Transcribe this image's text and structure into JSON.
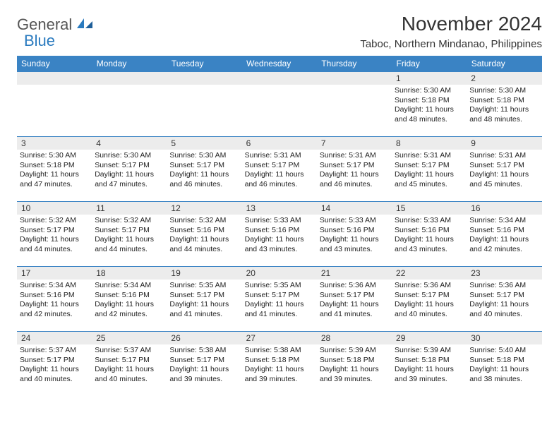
{
  "logo": {
    "text1": "General",
    "text2": "Blue"
  },
  "title": "November 2024",
  "location": "Taboc, Northern Mindanao, Philippines",
  "colors": {
    "header_bg": "#3a83c4",
    "header_fg": "#ffffff",
    "daynum_bg": "#ececec",
    "border": "#3a83c4",
    "logo_gray": "#555555",
    "logo_blue": "#2b7bbf"
  },
  "weekdays": [
    "Sunday",
    "Monday",
    "Tuesday",
    "Wednesday",
    "Thursday",
    "Friday",
    "Saturday"
  ],
  "weeks": [
    [
      {
        "day": "",
        "lines": []
      },
      {
        "day": "",
        "lines": []
      },
      {
        "day": "",
        "lines": []
      },
      {
        "day": "",
        "lines": []
      },
      {
        "day": "",
        "lines": []
      },
      {
        "day": "1",
        "lines": [
          "Sunrise: 5:30 AM",
          "Sunset: 5:18 PM",
          "Daylight: 11 hours and 48 minutes."
        ]
      },
      {
        "day": "2",
        "lines": [
          "Sunrise: 5:30 AM",
          "Sunset: 5:18 PM",
          "Daylight: 11 hours and 48 minutes."
        ]
      }
    ],
    [
      {
        "day": "3",
        "lines": [
          "Sunrise: 5:30 AM",
          "Sunset: 5:18 PM",
          "Daylight: 11 hours and 47 minutes."
        ]
      },
      {
        "day": "4",
        "lines": [
          "Sunrise: 5:30 AM",
          "Sunset: 5:17 PM",
          "Daylight: 11 hours and 47 minutes."
        ]
      },
      {
        "day": "5",
        "lines": [
          "Sunrise: 5:30 AM",
          "Sunset: 5:17 PM",
          "Daylight: 11 hours and 46 minutes."
        ]
      },
      {
        "day": "6",
        "lines": [
          "Sunrise: 5:31 AM",
          "Sunset: 5:17 PM",
          "Daylight: 11 hours and 46 minutes."
        ]
      },
      {
        "day": "7",
        "lines": [
          "Sunrise: 5:31 AM",
          "Sunset: 5:17 PM",
          "Daylight: 11 hours and 46 minutes."
        ]
      },
      {
        "day": "8",
        "lines": [
          "Sunrise: 5:31 AM",
          "Sunset: 5:17 PM",
          "Daylight: 11 hours and 45 minutes."
        ]
      },
      {
        "day": "9",
        "lines": [
          "Sunrise: 5:31 AM",
          "Sunset: 5:17 PM",
          "Daylight: 11 hours and 45 minutes."
        ]
      }
    ],
    [
      {
        "day": "10",
        "lines": [
          "Sunrise: 5:32 AM",
          "Sunset: 5:17 PM",
          "Daylight: 11 hours and 44 minutes."
        ]
      },
      {
        "day": "11",
        "lines": [
          "Sunrise: 5:32 AM",
          "Sunset: 5:17 PM",
          "Daylight: 11 hours and 44 minutes."
        ]
      },
      {
        "day": "12",
        "lines": [
          "Sunrise: 5:32 AM",
          "Sunset: 5:16 PM",
          "Daylight: 11 hours and 44 minutes."
        ]
      },
      {
        "day": "13",
        "lines": [
          "Sunrise: 5:33 AM",
          "Sunset: 5:16 PM",
          "Daylight: 11 hours and 43 minutes."
        ]
      },
      {
        "day": "14",
        "lines": [
          "Sunrise: 5:33 AM",
          "Sunset: 5:16 PM",
          "Daylight: 11 hours and 43 minutes."
        ]
      },
      {
        "day": "15",
        "lines": [
          "Sunrise: 5:33 AM",
          "Sunset: 5:16 PM",
          "Daylight: 11 hours and 43 minutes."
        ]
      },
      {
        "day": "16",
        "lines": [
          "Sunrise: 5:34 AM",
          "Sunset: 5:16 PM",
          "Daylight: 11 hours and 42 minutes."
        ]
      }
    ],
    [
      {
        "day": "17",
        "lines": [
          "Sunrise: 5:34 AM",
          "Sunset: 5:16 PM",
          "Daylight: 11 hours and 42 minutes."
        ]
      },
      {
        "day": "18",
        "lines": [
          "Sunrise: 5:34 AM",
          "Sunset: 5:16 PM",
          "Daylight: 11 hours and 42 minutes."
        ]
      },
      {
        "day": "19",
        "lines": [
          "Sunrise: 5:35 AM",
          "Sunset: 5:17 PM",
          "Daylight: 11 hours and 41 minutes."
        ]
      },
      {
        "day": "20",
        "lines": [
          "Sunrise: 5:35 AM",
          "Sunset: 5:17 PM",
          "Daylight: 11 hours and 41 minutes."
        ]
      },
      {
        "day": "21",
        "lines": [
          "Sunrise: 5:36 AM",
          "Sunset: 5:17 PM",
          "Daylight: 11 hours and 41 minutes."
        ]
      },
      {
        "day": "22",
        "lines": [
          "Sunrise: 5:36 AM",
          "Sunset: 5:17 PM",
          "Daylight: 11 hours and 40 minutes."
        ]
      },
      {
        "day": "23",
        "lines": [
          "Sunrise: 5:36 AM",
          "Sunset: 5:17 PM",
          "Daylight: 11 hours and 40 minutes."
        ]
      }
    ],
    [
      {
        "day": "24",
        "lines": [
          "Sunrise: 5:37 AM",
          "Sunset: 5:17 PM",
          "Daylight: 11 hours and 40 minutes."
        ]
      },
      {
        "day": "25",
        "lines": [
          "Sunrise: 5:37 AM",
          "Sunset: 5:17 PM",
          "Daylight: 11 hours and 40 minutes."
        ]
      },
      {
        "day": "26",
        "lines": [
          "Sunrise: 5:38 AM",
          "Sunset: 5:17 PM",
          "Daylight: 11 hours and 39 minutes."
        ]
      },
      {
        "day": "27",
        "lines": [
          "Sunrise: 5:38 AM",
          "Sunset: 5:18 PM",
          "Daylight: 11 hours and 39 minutes."
        ]
      },
      {
        "day": "28",
        "lines": [
          "Sunrise: 5:39 AM",
          "Sunset: 5:18 PM",
          "Daylight: 11 hours and 39 minutes."
        ]
      },
      {
        "day": "29",
        "lines": [
          "Sunrise: 5:39 AM",
          "Sunset: 5:18 PM",
          "Daylight: 11 hours and 39 minutes."
        ]
      },
      {
        "day": "30",
        "lines": [
          "Sunrise: 5:40 AM",
          "Sunset: 5:18 PM",
          "Daylight: 11 hours and 38 minutes."
        ]
      }
    ]
  ]
}
